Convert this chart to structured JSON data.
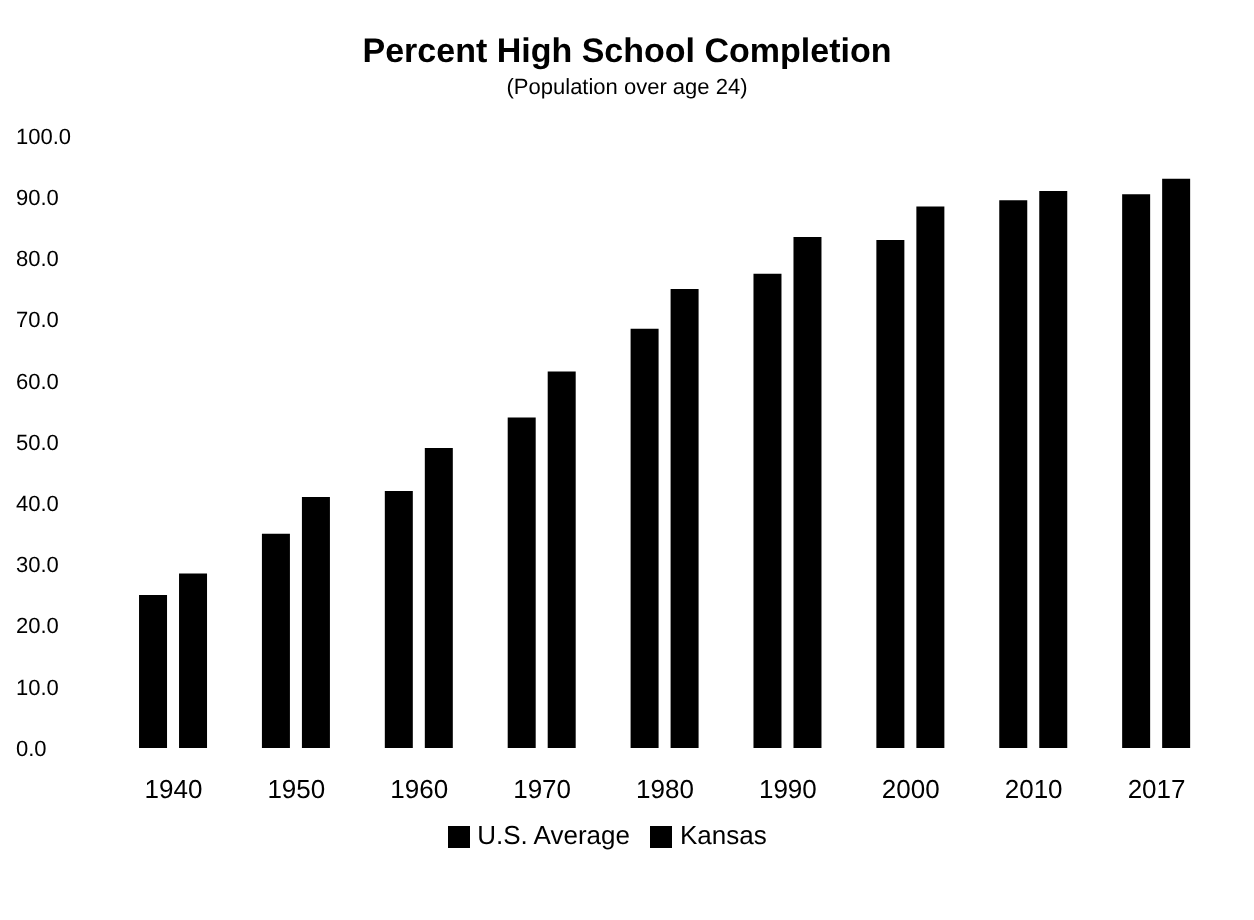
{
  "chart_data": {
    "type": "bar",
    "title": "Percent High School Completion",
    "subtitle": "(Population over age 24)",
    "categories": [
      "1940",
      "1950",
      "1960",
      "1970",
      "1980",
      "1990",
      "2000",
      "2010",
      "2017"
    ],
    "series": [
      {
        "name": "U.S. Average",
        "color": "#000000",
        "values": [
          25.0,
          35.0,
          42.0,
          54.0,
          68.5,
          77.5,
          83.0,
          89.5,
          90.5
        ]
      },
      {
        "name": "Kansas",
        "color": "#000000",
        "values": [
          28.5,
          41.0,
          49.0,
          61.5,
          75.0,
          83.5,
          88.5,
          91.0,
          93.0
        ]
      }
    ],
    "ylim": [
      0,
      100
    ],
    "yticks": [
      {
        "value": 0,
        "label": "0.0"
      },
      {
        "value": 10,
        "label": "10.0"
      },
      {
        "value": 20,
        "label": "20.0"
      },
      {
        "value": 30,
        "label": "30.0"
      },
      {
        "value": 40,
        "label": "40.0"
      },
      {
        "value": 50,
        "label": "50.0"
      },
      {
        "value": 60,
        "label": "60.0"
      },
      {
        "value": 70,
        "label": "70.0"
      },
      {
        "value": 80,
        "label": "80.0"
      },
      {
        "value": 90,
        "label": "90.0"
      },
      {
        "value": 100,
        "label": "100.0"
      }
    ],
    "legend": "bottom"
  }
}
